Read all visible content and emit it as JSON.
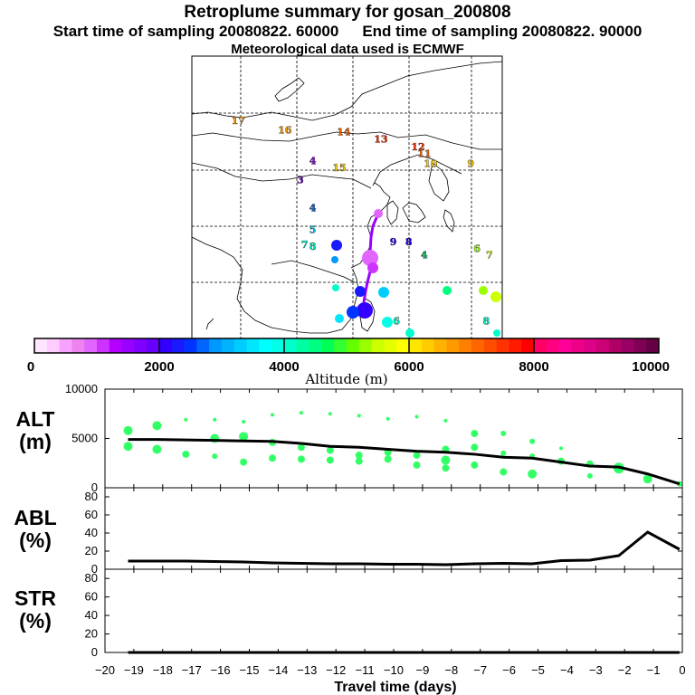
{
  "header": {
    "title": "Retroplume summary for gosan_200808",
    "start_label": "Start time of sampling 20080822. 60000",
    "end_label": "End time of sampling 20080822. 90000",
    "met_label": "Meteorological data used is ECMWF"
  },
  "map": {
    "plume_labels": [
      {
        "text": "17",
        "lon": 92.5,
        "lat": 42.8,
        "color": "#ff9900"
      },
      {
        "text": "16",
        "lon": 100,
        "lat": 41.8,
        "color": "#ff9900"
      },
      {
        "text": "14",
        "lon": 109.5,
        "lat": 41.6,
        "color": "#ff6600"
      },
      {
        "text": "13",
        "lon": 115.5,
        "lat": 40.8,
        "color": "#ff3300"
      },
      {
        "text": "12",
        "lon": 121.5,
        "lat": 40.0,
        "color": "#ff3300"
      },
      {
        "text": "11",
        "lon": 122.5,
        "lat": 39.3,
        "color": "#ff6600"
      },
      {
        "text": "10",
        "lon": 123.5,
        "lat": 38.2,
        "color": "#ffcc00"
      },
      {
        "text": "9",
        "lon": 130,
        "lat": 38.2,
        "color": "#ffcc00"
      },
      {
        "text": "15",
        "lon": 108.8,
        "lat": 37.8,
        "color": "#ffcc00"
      },
      {
        "text": "4",
        "lon": 104.5,
        "lat": 38.5,
        "color": "#9900ff"
      },
      {
        "text": "3",
        "lon": 102.5,
        "lat": 36.5,
        "color": "#6600cc"
      },
      {
        "text": "4",
        "lon": 104.5,
        "lat": 33.5,
        "color": "#0066ff"
      },
      {
        "text": "5",
        "lon": 104.5,
        "lat": 31.2,
        "color": "#00ccff"
      },
      {
        "text": "7",
        "lon": 103.2,
        "lat": 29.6,
        "color": "#00ffcc"
      },
      {
        "text": "8",
        "lon": 104.5,
        "lat": 29.4,
        "color": "#00ffcc"
      },
      {
        "text": "9",
        "lon": 117.5,
        "lat": 29.9,
        "color": "#3300ff"
      },
      {
        "text": "8",
        "lon": 120,
        "lat": 29.9,
        "color": "#3300ff"
      },
      {
        "text": "4",
        "lon": 122.5,
        "lat": 28.5,
        "color": "#00cc66"
      },
      {
        "text": "6",
        "lon": 131,
        "lat": 29.2,
        "color": "#99ff00"
      },
      {
        "text": "7",
        "lon": 133,
        "lat": 28.5,
        "color": "#ccff00"
      },
      {
        "text": "6",
        "lon": 118,
        "lat": 21.5,
        "color": "#00ffcc"
      },
      {
        "text": "8",
        "lon": 132.5,
        "lat": 21.5,
        "color": "#00ffcc"
      }
    ]
  },
  "colorbar": {
    "ticks": [
      "0",
      "2000",
      "4000",
      "6000",
      "8000",
      "10000"
    ],
    "label": "Altitude (m)",
    "colors": [
      "#ffe6ff",
      "#ffccff",
      "#f5a3ff",
      "#ee82ee",
      "#e066ff",
      "#cc33ff",
      "#b300ff",
      "#9900ff",
      "#7f00ff",
      "#6600ff",
      "#3300ff",
      "#1a1aff",
      "#0033ff",
      "#0066ff",
      "#0099ff",
      "#00b3ff",
      "#00ccff",
      "#00e6ff",
      "#00ffff",
      "#00ffe6",
      "#00ffcc",
      "#00ffa0",
      "#00ff80",
      "#00ff55",
      "#33ff33",
      "#66ff00",
      "#99ff00",
      "#ccff00",
      "#e6ff00",
      "#ffff00",
      "#ffe600",
      "#ffcc00",
      "#ffb300",
      "#ff9900",
      "#ff8000",
      "#ff6600",
      "#ff4d00",
      "#ff3300",
      "#ff1a00",
      "#ff0000",
      "#ff0066",
      "#ff0080",
      "#ff0099",
      "#ee0088",
      "#dd0088",
      "#cc0077",
      "#b00066",
      "#990066",
      "#800055",
      "#660044"
    ]
  },
  "chart_data": [
    {
      "type": "line",
      "name": "ALT",
      "ylabel": "ALT (m)",
      "ylabel_line1": "ALT",
      "ylabel_line2": "(m)",
      "ylim": [
        0,
        10000
      ],
      "yticks": [
        "0",
        "5000",
        "10000"
      ],
      "x": [
        -19.2,
        -18.2,
        -17.2,
        -16.2,
        -15.2,
        -14.2,
        -13.2,
        -12.2,
        -11.2,
        -10.2,
        -9.2,
        -8.2,
        -7.2,
        -6.2,
        -5.2,
        -4.2,
        -3.2,
        -2.2,
        -1.2,
        -0.1
      ],
      "values": [
        4900,
        4900,
        4850,
        4800,
        4750,
        4700,
        4500,
        4200,
        4100,
        3900,
        3700,
        3600,
        3400,
        3100,
        3000,
        2600,
        2200,
        2100,
        1400,
        400
      ],
      "scatter": [
        {
          "x": -19.2,
          "y": 5800,
          "r": 5
        },
        {
          "x": -19.2,
          "y": 4200,
          "r": 5
        },
        {
          "x": -18.2,
          "y": 6300,
          "r": 5
        },
        {
          "x": -18.2,
          "y": 3900,
          "r": 5
        },
        {
          "x": -17.2,
          "y": 6900,
          "r": 2
        },
        {
          "x": -17.2,
          "y": 3400,
          "r": 4
        },
        {
          "x": -16.2,
          "y": 6900,
          "r": 2
        },
        {
          "x": -16.2,
          "y": 5000,
          "r": 5
        },
        {
          "x": -16.2,
          "y": 3200,
          "r": 3
        },
        {
          "x": -15.2,
          "y": 6700,
          "r": 2
        },
        {
          "x": -15.2,
          "y": 5200,
          "r": 5
        },
        {
          "x": -15.2,
          "y": 2600,
          "r": 4
        },
        {
          "x": -14.2,
          "y": 7400,
          "r": 2
        },
        {
          "x": -14.2,
          "y": 4600,
          "r": 4
        },
        {
          "x": -14.2,
          "y": 3000,
          "r": 4
        },
        {
          "x": -13.2,
          "y": 7600,
          "r": 2
        },
        {
          "x": -13.2,
          "y": 4100,
          "r": 4
        },
        {
          "x": -13.2,
          "y": 2900,
          "r": 4
        },
        {
          "x": -12.2,
          "y": 7500,
          "r": 2
        },
        {
          "x": -12.2,
          "y": 3800,
          "r": 4
        },
        {
          "x": -12.2,
          "y": 2800,
          "r": 4
        },
        {
          "x": -11.2,
          "y": 7300,
          "r": 2
        },
        {
          "x": -11.2,
          "y": 3300,
          "r": 4
        },
        {
          "x": -11.2,
          "y": 2700,
          "r": 4
        },
        {
          "x": -10.2,
          "y": 7000,
          "r": 2
        },
        {
          "x": -10.2,
          "y": 3600,
          "r": 4
        },
        {
          "x": -10.2,
          "y": 2900,
          "r": 4
        },
        {
          "x": -9.2,
          "y": 7200,
          "r": 2
        },
        {
          "x": -9.2,
          "y": 3300,
          "r": 4
        },
        {
          "x": -9.2,
          "y": 2300,
          "r": 4
        },
        {
          "x": -8.2,
          "y": 6800,
          "r": 2
        },
        {
          "x": -8.2,
          "y": 3900,
          "r": 4
        },
        {
          "x": -8.2,
          "y": 2800,
          "r": 5
        },
        {
          "x": -8.2,
          "y": 2000,
          "r": 4
        },
        {
          "x": -7.2,
          "y": 5500,
          "r": 4
        },
        {
          "x": -7.2,
          "y": 4100,
          "r": 4
        },
        {
          "x": -7.2,
          "y": 2300,
          "r": 4
        },
        {
          "x": -6.2,
          "y": 5500,
          "r": 3
        },
        {
          "x": -6.2,
          "y": 3500,
          "r": 3
        },
        {
          "x": -6.2,
          "y": 1600,
          "r": 4
        },
        {
          "x": -5.2,
          "y": 4700,
          "r": 3
        },
        {
          "x": -5.2,
          "y": 3200,
          "r": 3
        },
        {
          "x": -5.2,
          "y": 1400,
          "r": 5
        },
        {
          "x": -4.2,
          "y": 4000,
          "r": 2
        },
        {
          "x": -4.2,
          "y": 2700,
          "r": 4
        },
        {
          "x": -3.2,
          "y": 2400,
          "r": 4
        },
        {
          "x": -3.2,
          "y": 1200,
          "r": 3
        },
        {
          "x": -2.2,
          "y": 2000,
          "r": 6
        },
        {
          "x": -1.2,
          "y": 900,
          "r": 5
        },
        {
          "x": -0.1,
          "y": 400,
          "r": 3
        }
      ]
    },
    {
      "type": "line",
      "name": "ABL",
      "ylabel": "ABL (%)",
      "ylabel_line1": "ABL",
      "ylabel_line2": "(%)",
      "ylim": [
        0,
        90
      ],
      "yticks": [
        "0",
        "20",
        "40",
        "60",
        "80"
      ],
      "x": [
        -19.2,
        -18.2,
        -17.2,
        -16.2,
        -15.2,
        -14.2,
        -13.2,
        -12.2,
        -11.2,
        -10.2,
        -9.2,
        -8.2,
        -7.2,
        -6.2,
        -5.2,
        -4.2,
        -3.2,
        -2.2,
        -1.2,
        -0.1
      ],
      "values": [
        9,
        9,
        9,
        8.5,
        8,
        7,
        6.5,
        6,
        6,
        5.5,
        5.5,
        5,
        6,
        6.5,
        6,
        9.5,
        10,
        15,
        41,
        22
      ]
    },
    {
      "type": "line",
      "name": "STR",
      "ylabel": "STR (%)",
      "ylabel_line1": "STR",
      "ylabel_line2": "(%)",
      "ylim": [
        0,
        90
      ],
      "yticks": [
        "0",
        "20",
        "40",
        "60",
        "80"
      ],
      "x": [
        -19.2,
        -0.1
      ],
      "values": [
        0,
        0
      ]
    }
  ],
  "xaxis": {
    "label": "Travel time (days)",
    "xlim": [
      -20,
      0
    ],
    "ticks": [
      "−20",
      "−19",
      "−18",
      "−17",
      "−16",
      "−15",
      "−14",
      "−13",
      "−12",
      "−11",
      "−10",
      "−9",
      "−8",
      "−7",
      "−6",
      "−5",
      "−4",
      "−3",
      "−2",
      "−1",
      "0"
    ]
  }
}
